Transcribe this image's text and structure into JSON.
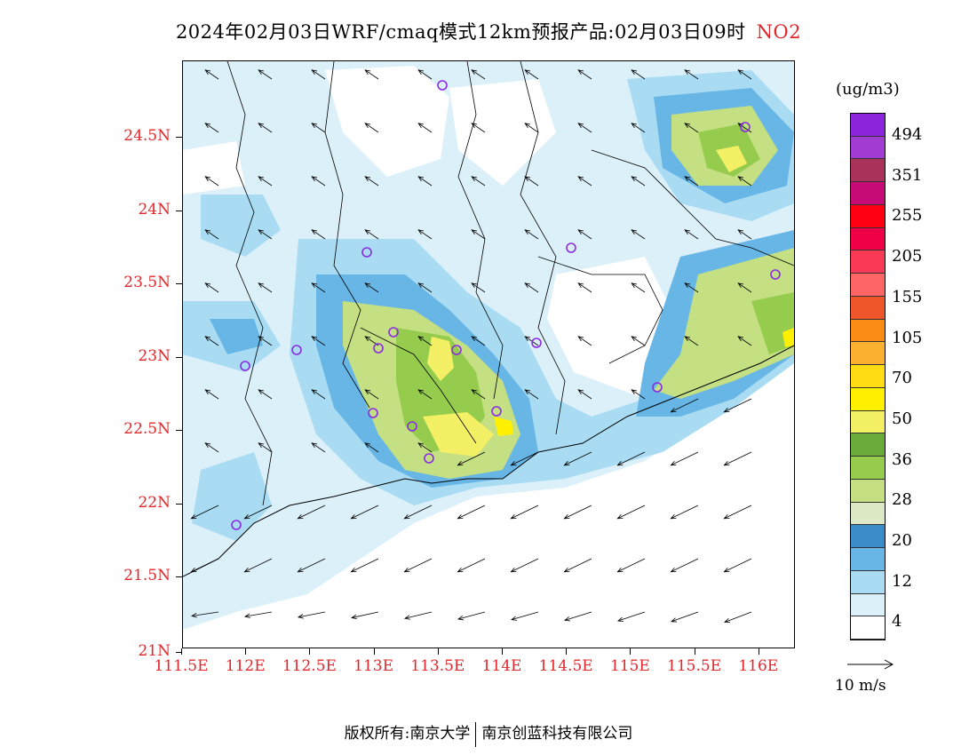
{
  "header": {
    "title": "2024年02月03日WRF/cmaq模式12km预报产品:02月03日09时",
    "pollutant": "NO2"
  },
  "map": {
    "lat_labels": [
      "24.5N",
      "24N",
      "23.5N",
      "23N",
      "22.5N",
      "22N",
      "21.5N",
      "21N"
    ],
    "lon_labels": [
      "111.5E",
      "112E",
      "112.5E",
      "113E",
      "113.5E",
      "114E",
      "114.5E",
      "115E",
      "115.5E",
      "116E"
    ],
    "colors": {
      "axis_label": "#e0282c",
      "station_marker": "#8a2be2"
    }
  },
  "legend": {
    "unit": "(ug/m3)",
    "levels": [
      "494",
      "351",
      "255",
      "205",
      "155",
      "105",
      "70",
      "50",
      "36",
      "28",
      "20",
      "12",
      "4"
    ],
    "colors": [
      "#ffffff",
      "#dcf0fa",
      "#a9dcf3",
      "#68b6e6",
      "#3a8cc8",
      "#dde8c4",
      "#c4e083",
      "#96cc4d",
      "#6aac39",
      "#f4f066",
      "#fff000",
      "#ffdc14",
      "#fcb030",
      "#fa8c14",
      "#ee5528",
      "#fc6666",
      "#f93a57",
      "#f00046",
      "#ff0010",
      "#c80a76",
      "#a8325a",
      "#a03cd2",
      "#8c24dc"
    ]
  },
  "wind_reference": {
    "label": "10 m/s"
  },
  "footer": {
    "copyright_label": "版权所有:南京大学",
    "company": "南京创蓝科技有限公司"
  }
}
